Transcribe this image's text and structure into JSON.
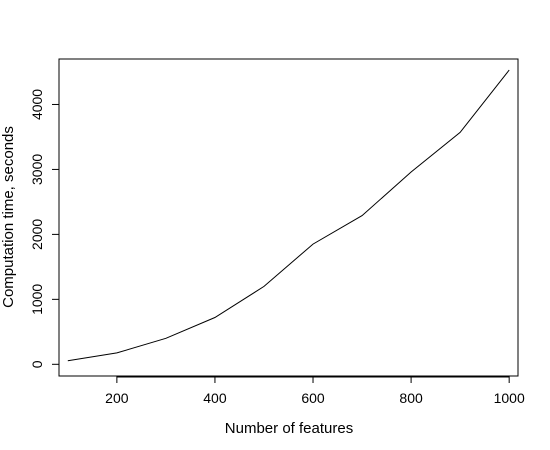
{
  "chart_data": {
    "type": "line",
    "title": "",
    "xlabel": "Number of features",
    "ylabel": "Computation time, seconds",
    "xlim": [
      82,
      1018
    ],
    "ylim": [
      -180,
      4700
    ],
    "x_ticks": [
      200,
      400,
      600,
      800,
      1000
    ],
    "y_ticks": [
      0,
      1000,
      2000,
      3000,
      4000
    ],
    "x_tick_labels": [
      "200",
      "400",
      "600",
      "800",
      "1000"
    ],
    "y_tick_labels": [
      "0",
      "1000",
      "2000",
      "3000",
      "4000"
    ],
    "grid": false,
    "line_color": "#000000",
    "series": [
      {
        "x": [
          100,
          200,
          300,
          400,
          500,
          600,
          700,
          800,
          900,
          1000
        ],
        "values": [
          55,
          175,
          400,
          720,
          1200,
          1850,
          2290,
          2960,
          3570,
          4530
        ]
      }
    ]
  }
}
